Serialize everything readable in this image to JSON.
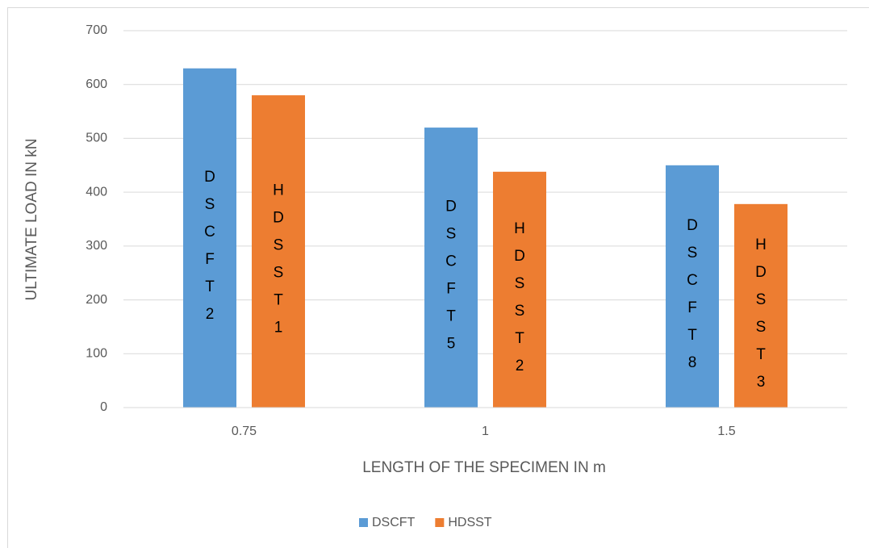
{
  "chart_data": {
    "type": "bar",
    "xlabel": "LENGTH OF THE SPECIMEN IN m",
    "ylabel": "ULTIMATE LOAD IN kN",
    "categories": [
      "0.75",
      "1",
      "1.5"
    ],
    "series": [
      {
        "name": "DSCFT",
        "color": "#5b9bd5",
        "values": [
          630,
          520,
          450
        ],
        "bar_labels": [
          "DSCFT2",
          "DSCFT5",
          "DSCFT8"
        ]
      },
      {
        "name": "HDSST",
        "color": "#ed7d31",
        "values": [
          580,
          438,
          378
        ],
        "bar_labels": [
          "HDSST1",
          "HDSST2",
          "HDSST3"
        ]
      }
    ],
    "ylim": [
      0,
      700
    ],
    "yticks": [
      0,
      100,
      200,
      300,
      400,
      500,
      600,
      700
    ],
    "grid": true,
    "legend": "bottom"
  }
}
